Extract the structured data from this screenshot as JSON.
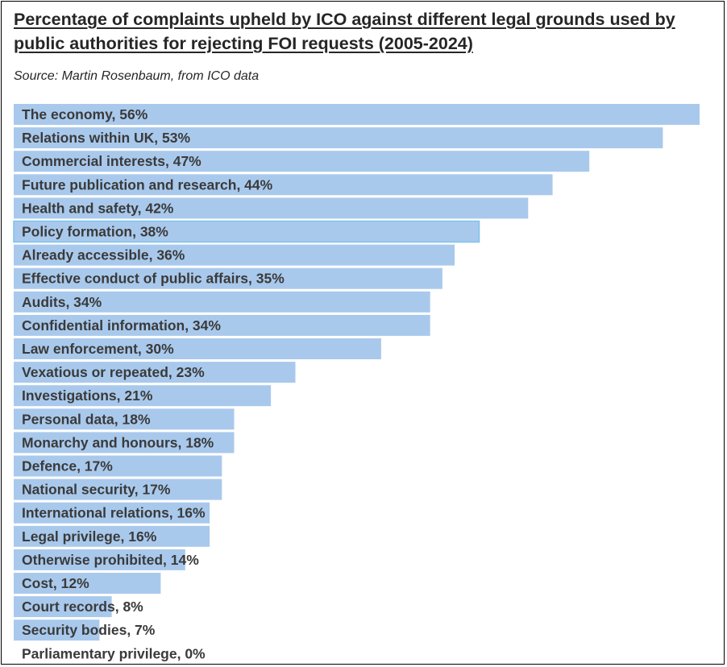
{
  "title": "Percentage of complaints upheld by ICO against different legal grounds used by public authorities for rejecting FOI requests (2005-2024)",
  "subtitle": "Source: Martin Rosenbaum, from ICO data",
  "colors": {
    "bar": "#a9c9ec",
    "bar_highlight_border": "#7fc3ea",
    "label": "#3a3a3a",
    "title": "#262626"
  },
  "chart_data": {
    "type": "bar",
    "orientation": "horizontal",
    "title": "Percentage of complaints upheld by ICO against different legal grounds used by public authorities for rejecting FOI requests (2005-2024)",
    "subtitle": "Source: Martin Rosenbaum, from ICO data",
    "xlabel": "",
    "ylabel": "",
    "unit": "%",
    "xlim": [
      0,
      56
    ],
    "grid": false,
    "legend": "none",
    "categories": [
      "The economy",
      "Relations within UK",
      "Commercial interests",
      "Future publication and research",
      "Health and safety",
      "Policy formation",
      "Already accessible",
      "Effective conduct of public affairs",
      "Audits",
      "Confidential information",
      "Law enforcement",
      "Vexatious or repeated",
      "Investigations",
      "Personal data",
      "Monarchy and honours",
      "Defence",
      "National security",
      "International relations",
      "Legal privilege",
      "Otherwise prohibited",
      "Cost",
      "Court records",
      "Security bodies",
      "Parliamentary privilege"
    ],
    "values": [
      56,
      53,
      47,
      44,
      42,
      38,
      36,
      35,
      34,
      34,
      30,
      23,
      21,
      18,
      18,
      17,
      17,
      16,
      16,
      14,
      12,
      8,
      7,
      0
    ],
    "data_labels": [
      "The economy, 56%",
      "Relations within UK, 53%",
      "Commercial interests, 47%",
      "Future publication and research, 44%",
      "Health and safety, 42%",
      "Policy formation, 38%",
      "Already accessible, 36%",
      "Effective conduct of public affairs, 35%",
      "Audits, 34%",
      "Confidential information, 34%",
      "Law enforcement, 30%",
      "Vexatious or repeated, 23%",
      "Investigations, 21%",
      "Personal data, 18%",
      "Monarchy and honours, 18%",
      "Defence, 17%",
      "National security, 17%",
      "International relations, 16%",
      "Legal privilege, 16%",
      "Otherwise prohibited, 14%",
      "Cost, 12%",
      "Court records, 8%",
      "Security bodies, 7%",
      "Parliamentary privilege, 0%"
    ],
    "highlighted_index": 5
  }
}
